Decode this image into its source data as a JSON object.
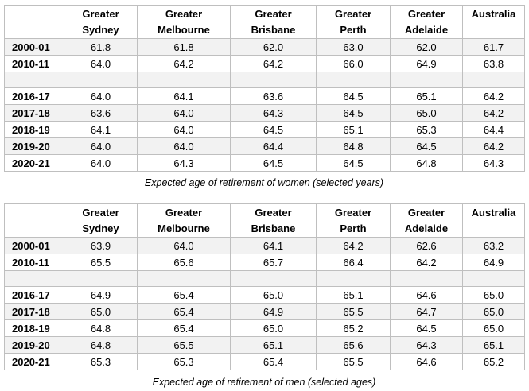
{
  "columns": [
    "",
    "Greater Sydney",
    "Greater Melbourne",
    "Greater Brisbane",
    "Greater Perth",
    "Greater Adelaide",
    "Australia"
  ],
  "tables": [
    {
      "caption": "Expected age of retirement of women (selected years)",
      "rows_top": [
        {
          "year": "2000-01",
          "values": [
            "61.8",
            "61.8",
            "62.0",
            "63.0",
            "62.0",
            "61.7"
          ]
        },
        {
          "year": "2010-11",
          "values": [
            "64.0",
            "64.2",
            "64.2",
            "66.0",
            "64.9",
            "63.8"
          ]
        }
      ],
      "rows_bottom": [
        {
          "year": "2016-17",
          "values": [
            "64.0",
            "64.1",
            "63.6",
            "64.5",
            "65.1",
            "64.2"
          ]
        },
        {
          "year": "2017-18",
          "values": [
            "63.6",
            "64.0",
            "64.3",
            "64.5",
            "65.0",
            "64.2"
          ]
        },
        {
          "year": "2018-19",
          "values": [
            "64.1",
            "64.0",
            "64.5",
            "65.1",
            "65.3",
            "64.4"
          ]
        },
        {
          "year": "2019-20",
          "values": [
            "64.0",
            "64.0",
            "64.4",
            "64.8",
            "64.5",
            "64.2"
          ]
        },
        {
          "year": "2020-21",
          "values": [
            "64.0",
            "64.3",
            "64.5",
            "64.5",
            "64.8",
            "64.3"
          ]
        }
      ]
    },
    {
      "caption": "Expected age of retirement of men (selected ages)",
      "rows_top": [
        {
          "year": "2000-01",
          "values": [
            "63.9",
            "64.0",
            "64.1",
            "64.2",
            "62.6",
            "63.2"
          ]
        },
        {
          "year": "2010-11",
          "values": [
            "65.5",
            "65.6",
            "65.7",
            "66.4",
            "64.2",
            "64.9"
          ]
        }
      ],
      "rows_bottom": [
        {
          "year": "2016-17",
          "values": [
            "64.9",
            "65.4",
            "65.0",
            "65.1",
            "64.6",
            "65.0"
          ]
        },
        {
          "year": "2017-18",
          "values": [
            "65.0",
            "65.4",
            "64.9",
            "65.5",
            "64.7",
            "65.0"
          ]
        },
        {
          "year": "2018-19",
          "values": [
            "64.8",
            "65.4",
            "65.0",
            "65.2",
            "64.5",
            "65.0"
          ]
        },
        {
          "year": "2019-20",
          "values": [
            "64.8",
            "65.5",
            "65.1",
            "65.6",
            "64.3",
            "65.1"
          ]
        },
        {
          "year": "2020-21",
          "values": [
            "65.3",
            "65.3",
            "65.4",
            "65.5",
            "64.6",
            "65.2"
          ]
        }
      ]
    }
  ],
  "colors": {
    "border": "#bfbfbf",
    "shade": "#f2f2f2"
  }
}
